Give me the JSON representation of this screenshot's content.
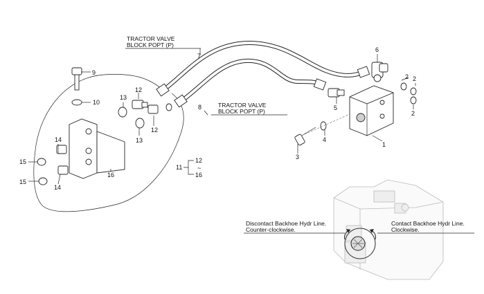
{
  "callouts": {
    "c1": "1",
    "c2a": "2",
    "c2b": "2",
    "c2c": "2",
    "c3": "3",
    "c4": "4",
    "c5": "5",
    "c6": "6",
    "c7": "7",
    "c8": "8",
    "c9": "9",
    "c10": "10",
    "c11": "11",
    "c12a": "12",
    "c12b": "12",
    "c12c": "12",
    "c13a": "13",
    "c13b": "13",
    "c14a": "14",
    "c14b": "14",
    "c15a": "15",
    "c15b": "15",
    "c16a": "16",
    "c16b": "16",
    "tilde": "~"
  },
  "labels": {
    "p7_line1": "TRACTOR VALVE",
    "p7_line2": "BLOCK POPT (P)",
    "p8_line1": "TRACTOR VALVE",
    "p8_line2": "BLOCK POPT (P)",
    "left_line1": "Discontact Backhoe Hydr Line.",
    "left_line2": "Counter-clockwise.",
    "right_line1": "Contact Backhoe Hydr Line.",
    "right_line2": "Clockwise."
  }
}
